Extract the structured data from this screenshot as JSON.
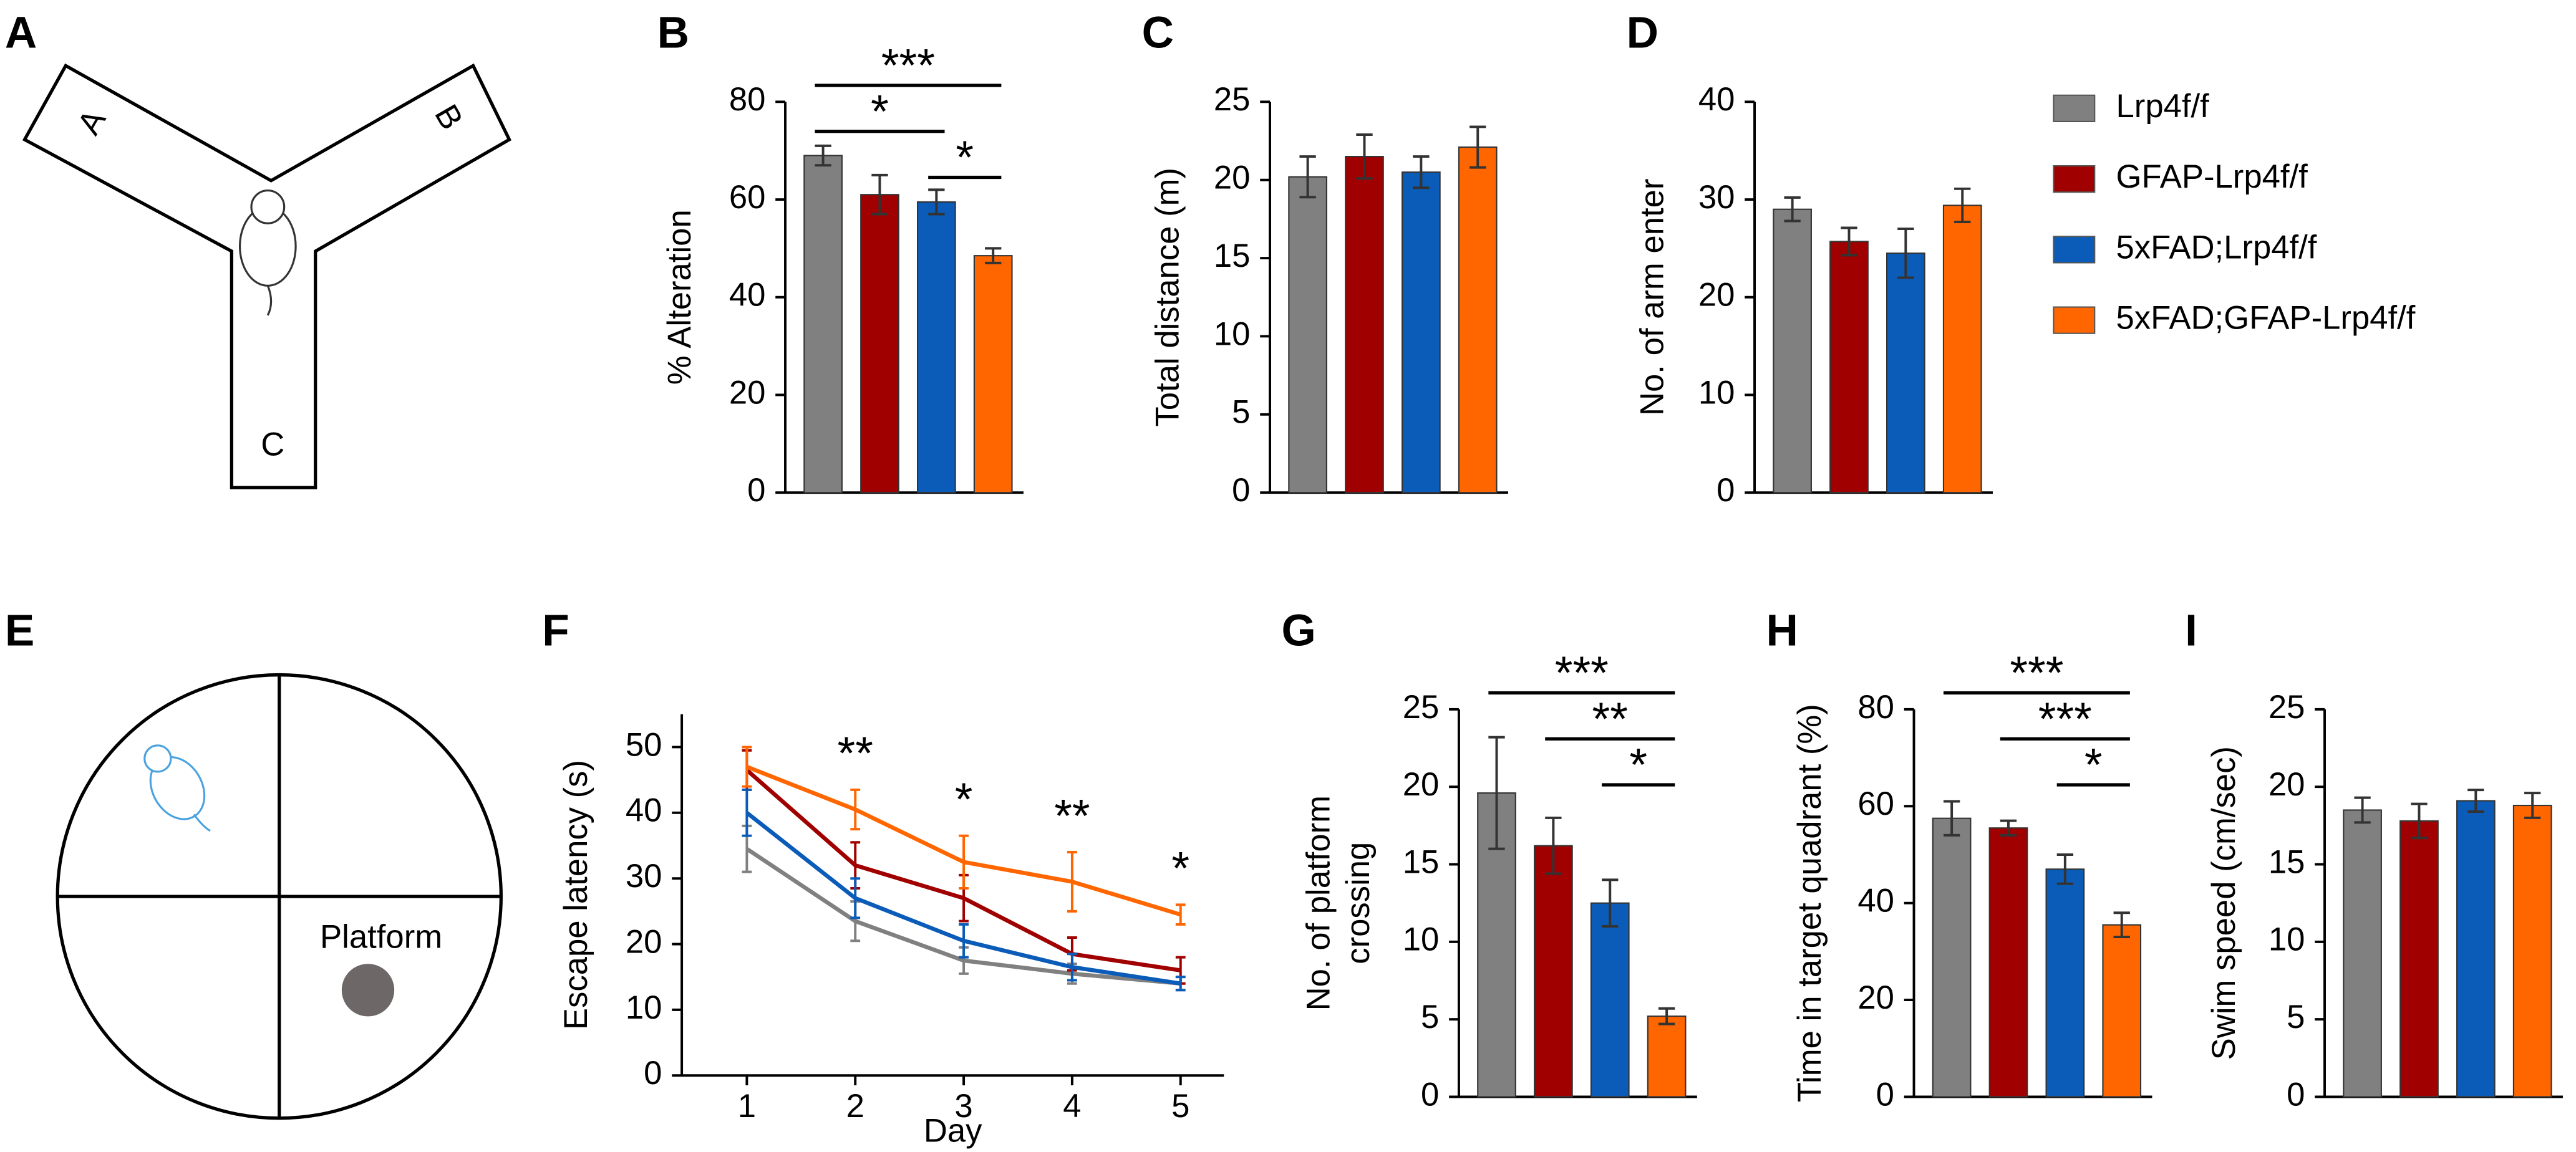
{
  "panels": [
    "A",
    "B",
    "C",
    "D",
    "E",
    "F",
    "G",
    "H",
    "I"
  ],
  "y_maze": {
    "arms": [
      "A",
      "B",
      "C"
    ]
  },
  "water_maze": {
    "platform": "Platform"
  },
  "legend": [
    {
      "name": "Lrp4f/f",
      "color": "#808080"
    },
    {
      "name": "GFAP-Lrp4f/f",
      "color": "#a00000"
    },
    {
      "name": "5xFAD;Lrp4f/f",
      "color": "#0a5cb8"
    },
    {
      "name": "5xFAD;GFAP-Lrp4f/f",
      "color": "#ff6600"
    }
  ],
  "chart_data": [
    {
      "type": "bar",
      "ylabel": [
        "% Alteration"
      ],
      "categories": [
        null,
        null,
        null,
        null
      ],
      "values": [
        69,
        61,
        59.5,
        48.5
      ],
      "errors": [
        2,
        4,
        2.5,
        1.5
      ],
      "colors": [
        "#808080",
        "#a00000",
        "#0a5cb8",
        "#ff6600"
      ],
      "ylim": [
        0,
        80
      ],
      "yticks": [
        0,
        20,
        40,
        60,
        80
      ],
      "brackets": [
        {
          "label": "***",
          "from": 0,
          "to": 3
        },
        {
          "label": "*",
          "from": 0,
          "to": 2
        },
        {
          "label": "*",
          "from": 2,
          "to": 3
        }
      ]
    },
    {
      "type": "bar",
      "ylabel": [
        "Total distance (m)"
      ],
      "categories": [
        null,
        null,
        null,
        null
      ],
      "values": [
        20.2,
        21.5,
        20.5,
        22.1
      ],
      "errors": [
        1.3,
        1.4,
        1,
        1.3
      ],
      "colors": [
        "#808080",
        "#a00000",
        "#0a5cb8",
        "#ff6600"
      ],
      "ylim": [
        0,
        25
      ],
      "yticks": [
        0,
        5,
        10,
        15,
        20,
        25
      ],
      "brackets": []
    },
    {
      "type": "bar",
      "ylabel": [
        "No. of arm enter"
      ],
      "categories": [
        null,
        null,
        null,
        null
      ],
      "values": [
        29,
        25.7,
        24.5,
        29.4
      ],
      "errors": [
        1.2,
        1.4,
        2.5,
        1.7
      ],
      "colors": [
        "#808080",
        "#a00000",
        "#0a5cb8",
        "#ff6600"
      ],
      "ylim": [
        0,
        40
      ],
      "yticks": [
        0,
        10,
        20,
        30,
        40
      ],
      "brackets": []
    },
    {
      "type": "line",
      "ylabel": [
        "Escape latency (s)"
      ],
      "xlabel": "Day",
      "x": [
        1,
        2,
        3,
        4,
        5
      ],
      "xlim": [
        0.4,
        5.4
      ],
      "xticks": [
        1,
        2,
        3,
        4,
        5
      ],
      "ylim": [
        0,
        55
      ],
      "yticks": [
        0,
        10,
        20,
        30,
        40,
        50
      ],
      "series": [
        {
          "color": "#808080",
          "values": [
            34.5,
            23.5,
            17.5,
            15.5,
            14
          ],
          "errors": [
            3.5,
            3,
            2,
            1.5,
            1
          ]
        },
        {
          "color": "#a00000",
          "values": [
            46.5,
            32,
            27,
            18.5,
            16
          ],
          "errors": [
            3,
            3.5,
            3.5,
            2.5,
            2
          ]
        },
        {
          "color": "#0a5cb8",
          "values": [
            40,
            27,
            20.5,
            16.5,
            14
          ],
          "errors": [
            3.5,
            3,
            2.5,
            2,
            1
          ]
        },
        {
          "color": "#ff6600",
          "values": [
            47,
            40.5,
            32.5,
            29.5,
            24.5
          ],
          "errors": [
            3,
            3,
            4,
            4.5,
            1.5
          ]
        }
      ],
      "annotations": [
        {
          "x": 2,
          "text": "**"
        },
        {
          "x": 3,
          "text": "*"
        },
        {
          "x": 4,
          "text": "**"
        },
        {
          "x": 5,
          "text": "*"
        }
      ]
    },
    {
      "type": "bar",
      "ylabel": [
        "No. of platform",
        "crossing"
      ],
      "categories": [
        null,
        null,
        null,
        null
      ],
      "values": [
        19.6,
        16.2,
        12.5,
        5.2
      ],
      "errors": [
        3.6,
        1.8,
        1.5,
        0.5
      ],
      "colors": [
        "#808080",
        "#a00000",
        "#0a5cb8",
        "#ff6600"
      ],
      "ylim": [
        0,
        25
      ],
      "yticks": [
        0,
        5,
        10,
        15,
        20,
        25
      ],
      "brackets": [
        {
          "label": "***",
          "from": 0,
          "to": 3
        },
        {
          "label": "**",
          "from": 1,
          "to": 3
        },
        {
          "label": "*",
          "from": 2,
          "to": 3
        }
      ]
    },
    {
      "type": "bar",
      "ylabel": [
        "Time in target quadrant (%)"
      ],
      "categories": [
        null,
        null,
        null,
        null
      ],
      "values": [
        57.5,
        55.5,
        47,
        35.5
      ],
      "errors": [
        3.5,
        1.5,
        3,
        2.5
      ],
      "colors": [
        "#808080",
        "#a00000",
        "#0a5cb8",
        "#ff6600"
      ],
      "ylim": [
        0,
        80
      ],
      "yticks": [
        0,
        20,
        40,
        60,
        80
      ],
      "brackets": [
        {
          "label": "***",
          "from": 0,
          "to": 3
        },
        {
          "label": "***",
          "from": 1,
          "to": 3
        },
        {
          "label": "*",
          "from": 2,
          "to": 3
        }
      ]
    },
    {
      "type": "bar",
      "ylabel": [
        "Swim speed (cm/sec)"
      ],
      "categories": [
        null,
        null,
        null,
        null
      ],
      "values": [
        18.5,
        17.8,
        19.1,
        18.8
      ],
      "errors": [
        0.8,
        1.1,
        0.7,
        0.8
      ],
      "colors": [
        "#808080",
        "#a00000",
        "#0a5cb8",
        "#ff6600"
      ],
      "ylim": [
        0,
        25
      ],
      "yticks": [
        0,
        5,
        10,
        15,
        20,
        25
      ],
      "brackets": []
    }
  ]
}
